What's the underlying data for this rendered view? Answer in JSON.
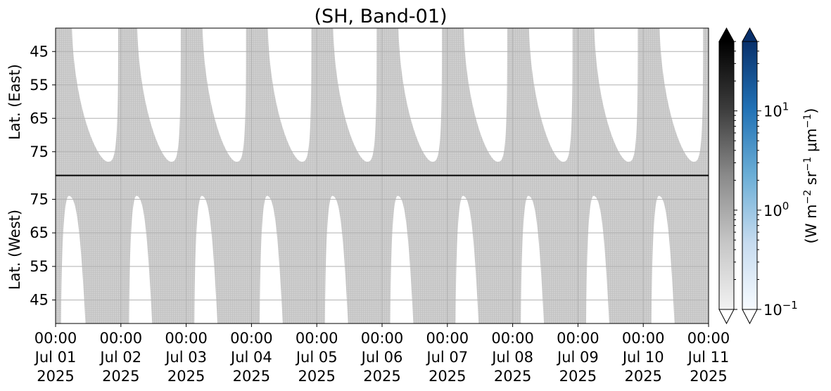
{
  "chart_data": {
    "type": "heatmap",
    "title": "(SH, Band-01)",
    "x_axis": {
      "type": "time",
      "range": [
        "2025-07-01 00:00",
        "2025-07-11 00:00"
      ],
      "tick_labels": [
        [
          "00:00",
          "Jul 01",
          "2025"
        ],
        [
          "00:00",
          "Jul 02",
          "2025"
        ],
        [
          "00:00",
          "Jul 03",
          "2025"
        ],
        [
          "00:00",
          "Jul 04",
          "2025"
        ],
        [
          "00:00",
          "Jul 05",
          "2025"
        ],
        [
          "00:00",
          "Jul 06",
          "2025"
        ],
        [
          "00:00",
          "Jul 07",
          "2025"
        ],
        [
          "00:00",
          "Jul 08",
          "2025"
        ],
        [
          "00:00",
          "Jul 09",
          "2025"
        ],
        [
          "00:00",
          "Jul 10",
          "2025"
        ],
        [
          "00:00",
          "Jul 11",
          "2025"
        ]
      ]
    },
    "panels": [
      {
        "name": "east",
        "ylabel": "Lat. (East)",
        "ylim": [
          38,
          82
        ],
        "y_inverted": true,
        "y_ticks": [
          45,
          55,
          65,
          75
        ],
        "y_tick_labels": [
          "45",
          "55",
          "65",
          "75"
        ],
        "grid": true,
        "white_region_edge": "bottom",
        "lobes": [
          {
            "start": "07-01 06:00",
            "end": "07-01 23:00",
            "max_lat": 78
          },
          {
            "start": "07-02 06:00",
            "end": "07-02 22:00",
            "max_lat": 78
          },
          {
            "start": "07-03 06:00",
            "end": "07-03 22:00",
            "max_lat": 78
          },
          {
            "start": "07-04 06:00",
            "end": "07-04 22:00",
            "max_lat": 78
          },
          {
            "start": "07-05 06:00",
            "end": "07-05 22:00",
            "max_lat": 78
          },
          {
            "start": "07-06 06:00",
            "end": "07-06 22:00",
            "max_lat": 78
          },
          {
            "start": "07-07 06:00",
            "end": "07-07 22:00",
            "max_lat": 78
          },
          {
            "start": "07-08 06:00",
            "end": "07-08 22:00",
            "max_lat": 78
          },
          {
            "start": "07-09 06:00",
            "end": "07-09 22:00",
            "max_lat": 78
          },
          {
            "start": "07-10 06:00",
            "end": "07-10 22:00",
            "max_lat": 78
          }
        ]
      },
      {
        "name": "west",
        "ylabel": "Lat. (West)",
        "ylim": [
          38,
          82
        ],
        "y_inverted": false,
        "y_ticks": [
          45,
          55,
          65,
          75
        ],
        "y_tick_labels": [
          "45",
          "55",
          "65",
          "75"
        ],
        "grid": true,
        "white_region_edge": "bottom",
        "lobes": [
          {
            "start": "07-01 02:00",
            "end": "07-01 11:00",
            "max_lat": 76
          },
          {
            "start": "07-02 03:00",
            "end": "07-02 11:30",
            "max_lat": 76
          },
          {
            "start": "07-03 03:00",
            "end": "07-03 11:30",
            "max_lat": 76
          },
          {
            "start": "07-04 03:00",
            "end": "07-04 11:30",
            "max_lat": 76
          },
          {
            "start": "07-05 03:00",
            "end": "07-05 11:30",
            "max_lat": 76
          },
          {
            "start": "07-06 03:00",
            "end": "07-06 11:30",
            "max_lat": 76
          },
          {
            "start": "07-07 03:00",
            "end": "07-07 11:30",
            "max_lat": 76
          },
          {
            "start": "07-08 03:00",
            "end": "07-08 11:30",
            "max_lat": 76
          },
          {
            "start": "07-09 03:00",
            "end": "07-09 11:30",
            "max_lat": 76
          },
          {
            "start": "07-10 03:00",
            "end": "07-10 11:30",
            "max_lat": 76
          }
        ]
      }
    ],
    "colorbars": [
      {
        "name": "gray",
        "colors": [
          "#f2f2f2",
          "#c6c6c6",
          "#8a8a8a",
          "#3c3c3c",
          "#000000"
        ],
        "extend": "both"
      },
      {
        "name": "blues",
        "colors": [
          "#f7fbff",
          "#c6dbef",
          "#6baed6",
          "#2171b5",
          "#08306b"
        ],
        "extend": "both",
        "scale": "log",
        "range": [
          0.1,
          50
        ],
        "tick_values": [
          0.1,
          1,
          10
        ],
        "tick_labels": [
          {
            "base": "10",
            "exp": "−1"
          },
          {
            "base": "10",
            "exp": "0"
          },
          {
            "base": "10",
            "exp": "1"
          }
        ],
        "label": {
          "prefix": "(W m",
          "exp1": "−2",
          "mid1": " sr",
          "exp2": "−1",
          "mid2": " μm",
          "exp3": "−1",
          "suffix": ")"
        }
      }
    ],
    "colors": {
      "observed_fill": "#cdcdcd",
      "no_data": "#ffffff",
      "grid": "#b0b0b0",
      "axes": "#000000"
    }
  }
}
